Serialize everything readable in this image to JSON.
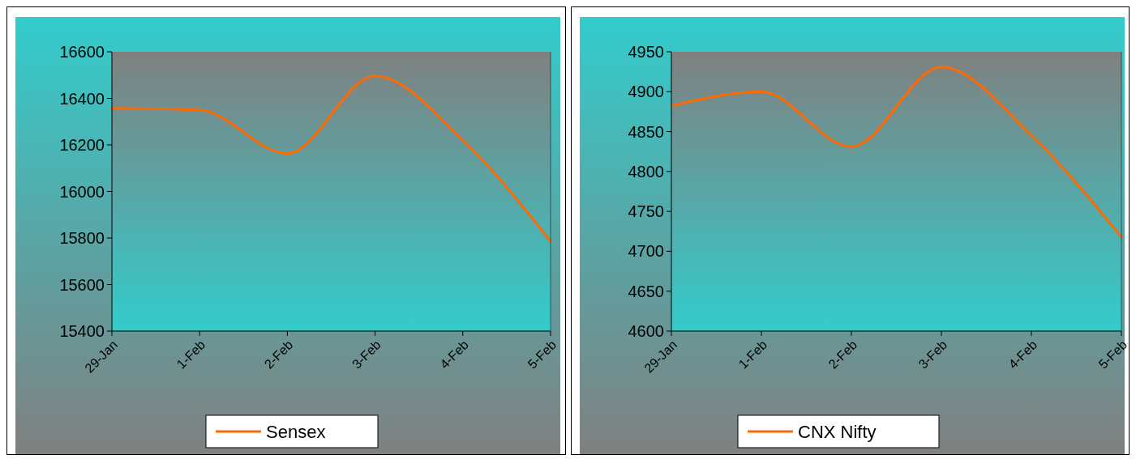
{
  "chart_data": [
    {
      "type": "line",
      "categories": [
        "29-Jan",
        "1-Feb",
        "2-Feb",
        "3-Feb",
        "4-Feb",
        "5-Feb"
      ],
      "series": [
        {
          "name": "Sensex",
          "color": "#ff6a00",
          "values": [
            16357,
            16350,
            16163,
            16496,
            16220,
            15786
          ]
        }
      ],
      "ylim": [
        15400,
        16600
      ],
      "yticks": [
        15400,
        15600,
        15800,
        16000,
        16200,
        16400,
        16600
      ],
      "legend": "bottom"
    },
    {
      "type": "line",
      "categories": [
        "29-Jan",
        "1-Feb",
        "2-Feb",
        "3-Feb",
        "4-Feb",
        "5-Feb"
      ],
      "series": [
        {
          "name": "CNX Nifty",
          "color": "#ff6a00",
          "values": [
            4882,
            4900,
            4831,
            4931,
            4845,
            4718
          ]
        }
      ],
      "ylim": [
        4600,
        4950
      ],
      "yticks": [
        4600,
        4650,
        4700,
        4750,
        4800,
        4850,
        4900,
        4950
      ],
      "legend": "bottom"
    }
  ]
}
